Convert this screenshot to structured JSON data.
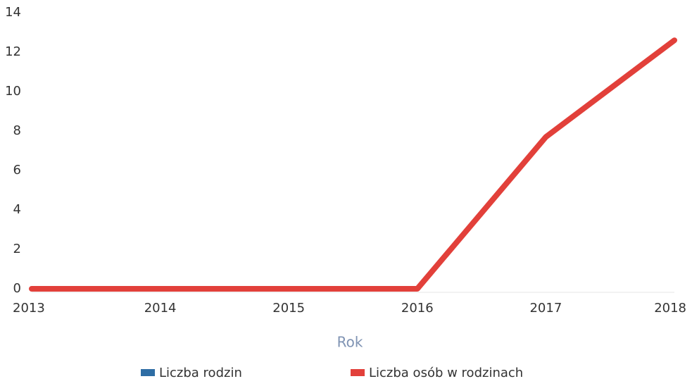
{
  "chart_data": {
    "type": "line",
    "x_label": "Rok",
    "categories": [
      "2013",
      "2014",
      "2015",
      "2016",
      "2017",
      "2018"
    ],
    "series": [
      {
        "name": "Liczba rodzin",
        "color": "#2e6da4",
        "values": [
          null,
          null,
          null,
          null,
          null,
          null
        ]
      },
      {
        "name": "Liczba osób w rodzinach",
        "color": "#e2403a",
        "values": [
          0,
          0,
          0,
          0,
          7.7,
          12.6
        ]
      }
    ],
    "ylim": [
      0,
      14
    ],
    "yticks": [
      0,
      2,
      4,
      6,
      8,
      10,
      12,
      14
    ],
    "grid": false
  }
}
